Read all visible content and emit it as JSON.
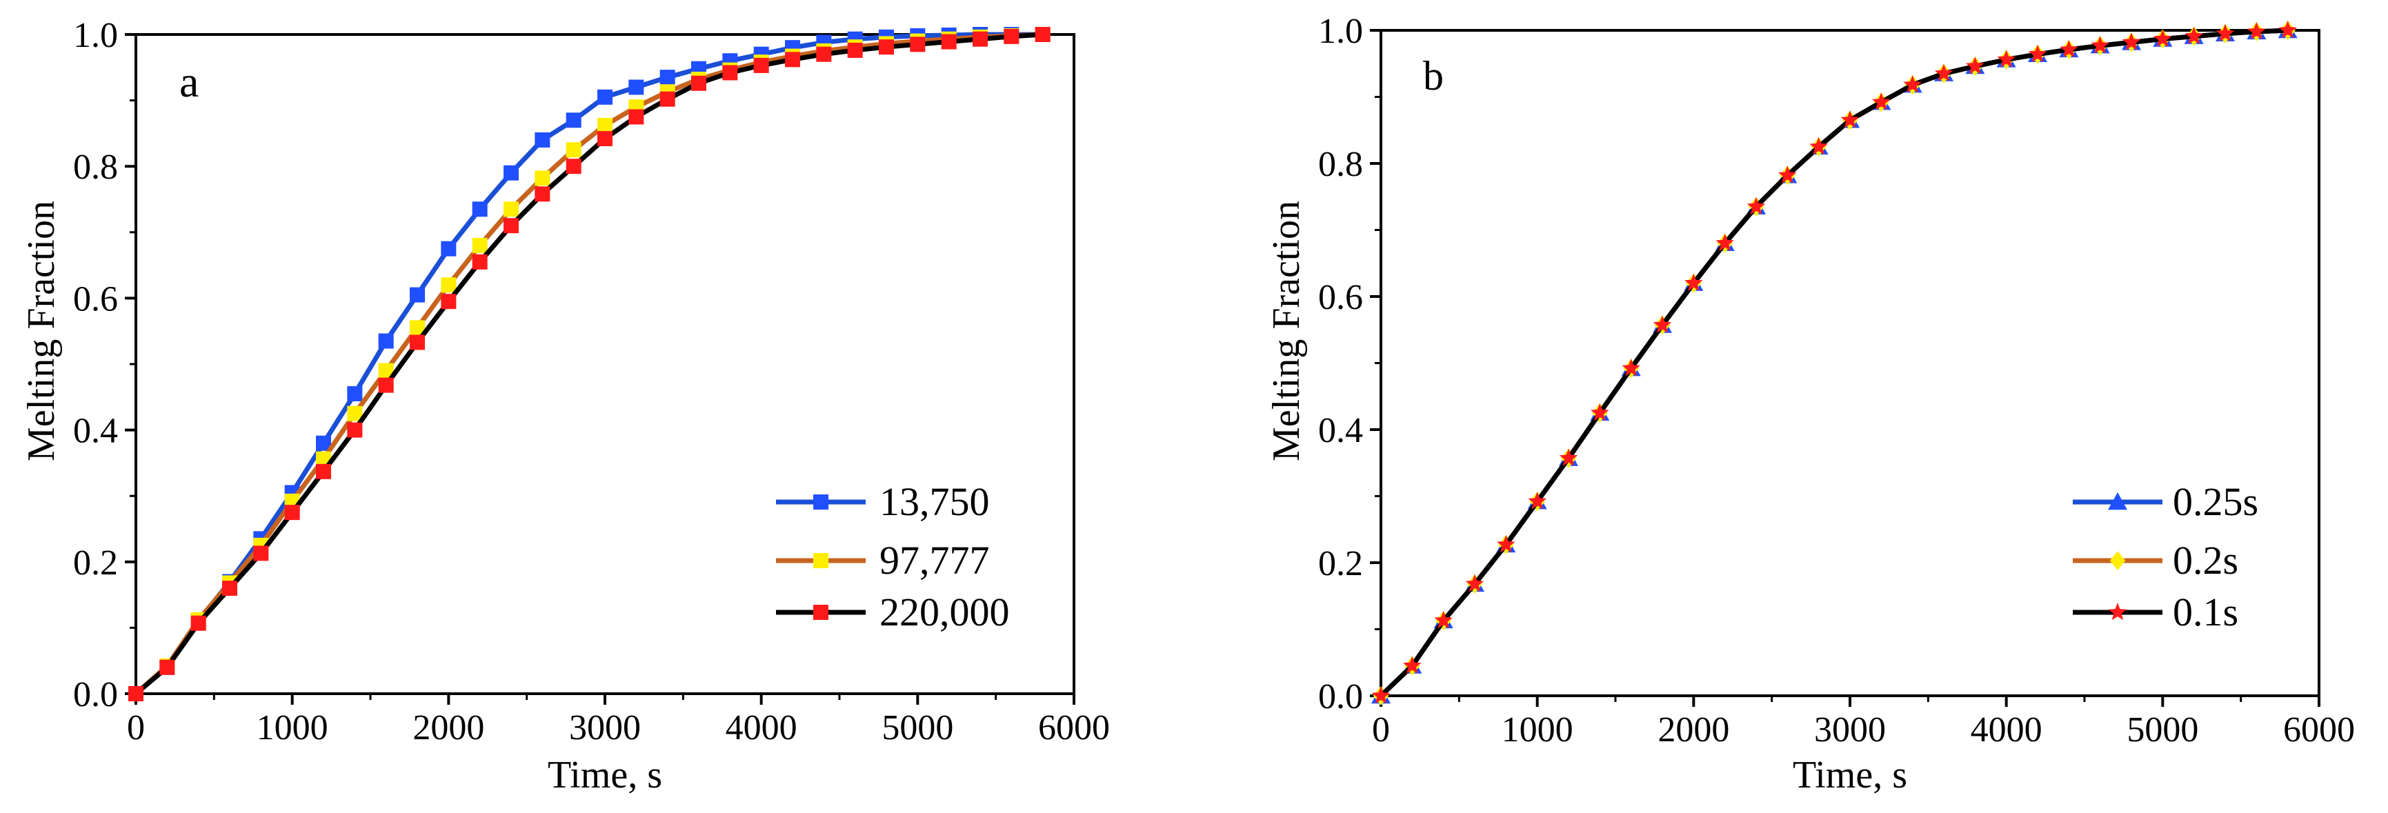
{
  "chart_data": [
    {
      "type": "line",
      "panel_label": "a",
      "xlabel": "Time, s",
      "ylabel": "Melting Fraction",
      "xlim": [
        0,
        6000
      ],
      "ylim": [
        0,
        1.0
      ],
      "xticks": [
        0,
        1000,
        2000,
        3000,
        4000,
        5000,
        6000
      ],
      "xtick_labels": [
        "0",
        "1000",
        "2000",
        "3000",
        "4000",
        "5000",
        "6000"
      ],
      "yticks": [
        0,
        0.2,
        0.4,
        0.6,
        0.8,
        1.0
      ],
      "ytick_labels": [
        "0.0",
        "0.2",
        "0.4",
        "0.6",
        "0.8",
        "1.0"
      ],
      "legend_position": "bottom-right",
      "series": [
        {
          "name": "13,750",
          "line_color": "#1a4fd6",
          "marker_color": "#1f4fff",
          "marker": "square",
          "x": [
            0,
            200,
            400,
            600,
            800,
            1000,
            1200,
            1400,
            1600,
            1800,
            2000,
            2200,
            2400,
            2600,
            2800,
            3000,
            3200,
            3400,
            3600,
            3800,
            4000,
            4200,
            4400,
            4600,
            4800,
            5000,
            5200,
            5400,
            5600,
            5800
          ],
          "y": [
            0.0,
            0.04,
            0.11,
            0.17,
            0.235,
            0.305,
            0.38,
            0.455,
            0.535,
            0.605,
            0.675,
            0.735,
            0.79,
            0.84,
            0.87,
            0.905,
            0.92,
            0.935,
            0.948,
            0.96,
            0.97,
            0.98,
            0.988,
            0.993,
            0.996,
            0.998,
            0.999,
            1.0,
            1.0,
            1.0
          ]
        },
        {
          "name": "97,777",
          "line_color": "#c8641e",
          "marker_color": "#ffee00",
          "marker": "square",
          "x": [
            0,
            200,
            400,
            600,
            800,
            1000,
            1200,
            1400,
            1600,
            1800,
            2000,
            2200,
            2400,
            2600,
            2800,
            3000,
            3200,
            3400,
            3600,
            3800,
            4000,
            4200,
            4400,
            4600,
            4800,
            5000,
            5200,
            5400,
            5600,
            5800
          ],
          "y": [
            0.0,
            0.042,
            0.112,
            0.168,
            0.225,
            0.292,
            0.356,
            0.425,
            0.49,
            0.555,
            0.62,
            0.68,
            0.735,
            0.782,
            0.825,
            0.862,
            0.89,
            0.913,
            0.932,
            0.946,
            0.958,
            0.967,
            0.975,
            0.981,
            0.986,
            0.99,
            0.993,
            0.996,
            0.998,
            1.0
          ]
        },
        {
          "name": "220,000",
          "line_color": "#000000",
          "marker_color": "#ff1a1a",
          "marker": "square",
          "x": [
            0,
            200,
            400,
            600,
            800,
            1000,
            1200,
            1400,
            1600,
            1800,
            2000,
            2200,
            2400,
            2600,
            2800,
            3000,
            3200,
            3400,
            3600,
            3800,
            4000,
            4200,
            4400,
            4600,
            4800,
            5000,
            5200,
            5400,
            5600,
            5800
          ],
          "y": [
            0.0,
            0.04,
            0.107,
            0.16,
            0.213,
            0.275,
            0.337,
            0.4,
            0.468,
            0.533,
            0.595,
            0.655,
            0.71,
            0.758,
            0.8,
            0.842,
            0.875,
            0.902,
            0.926,
            0.942,
            0.953,
            0.962,
            0.97,
            0.976,
            0.981,
            0.985,
            0.989,
            0.993,
            0.997,
            1.0
          ]
        }
      ]
    },
    {
      "type": "line",
      "panel_label": "b",
      "xlabel": "Time, s",
      "ylabel": "Melting Fraction",
      "xlim": [
        0,
        6000
      ],
      "ylim": [
        0,
        1.0
      ],
      "xticks": [
        0,
        1000,
        2000,
        3000,
        4000,
        5000,
        6000
      ],
      "xtick_labels": [
        "0",
        "1000",
        "2000",
        "3000",
        "4000",
        "5000",
        "6000"
      ],
      "yticks": [
        0,
        0.2,
        0.4,
        0.6,
        0.8,
        1.0
      ],
      "ytick_labels": [
        "0.0",
        "0.2",
        "0.4",
        "0.6",
        "0.8",
        "1.0"
      ],
      "legend_position": "bottom-right",
      "series": [
        {
          "name": "0.25s",
          "line_color": "#1a4fd6",
          "marker_color": "#1f4fff",
          "marker": "triangle",
          "x": [
            0,
            200,
            400,
            600,
            800,
            1000,
            1200,
            1400,
            1600,
            1800,
            2000,
            2200,
            2400,
            2600,
            2800,
            3000,
            3200,
            3400,
            3600,
            3800,
            4000,
            4200,
            4400,
            4600,
            4800,
            5000,
            5200,
            5400,
            5600,
            5800
          ],
          "y": [
            0.0,
            0.045,
            0.113,
            0.168,
            0.227,
            0.292,
            0.357,
            0.425,
            0.492,
            0.557,
            0.62,
            0.68,
            0.735,
            0.782,
            0.825,
            0.865,
            0.892,
            0.918,
            0.935,
            0.946,
            0.956,
            0.964,
            0.971,
            0.977,
            0.982,
            0.987,
            0.991,
            0.995,
            0.998,
            1.0
          ]
        },
        {
          "name": "0.2s",
          "line_color": "#c8641e",
          "marker_color": "#ffee00",
          "marker": "diamond",
          "x": [
            0,
            200,
            400,
            600,
            800,
            1000,
            1200,
            1400,
            1600,
            1800,
            2000,
            2200,
            2400,
            2600,
            2800,
            3000,
            3200,
            3400,
            3600,
            3800,
            4000,
            4200,
            4400,
            4600,
            4800,
            5000,
            5200,
            5400,
            5600,
            5800
          ],
          "y": [
            0.0,
            0.045,
            0.113,
            0.168,
            0.227,
            0.292,
            0.357,
            0.425,
            0.492,
            0.557,
            0.62,
            0.68,
            0.735,
            0.782,
            0.825,
            0.865,
            0.892,
            0.918,
            0.935,
            0.946,
            0.956,
            0.964,
            0.971,
            0.977,
            0.982,
            0.987,
            0.991,
            0.995,
            0.998,
            1.0
          ]
        },
        {
          "name": "0.1s",
          "line_color": "#000000",
          "marker_color": "#ff1a1a",
          "marker": "star",
          "x": [
            0,
            200,
            400,
            600,
            800,
            1000,
            1200,
            1400,
            1600,
            1800,
            2000,
            2200,
            2400,
            2600,
            2800,
            3000,
            3200,
            3400,
            3600,
            3800,
            4000,
            4200,
            4400,
            4600,
            4800,
            5000,
            5200,
            5400,
            5600,
            5800
          ],
          "y": [
            0.0,
            0.045,
            0.113,
            0.168,
            0.227,
            0.292,
            0.357,
            0.425,
            0.492,
            0.557,
            0.62,
            0.68,
            0.735,
            0.782,
            0.825,
            0.865,
            0.892,
            0.918,
            0.935,
            0.946,
            0.956,
            0.964,
            0.971,
            0.977,
            0.982,
            0.987,
            0.991,
            0.995,
            0.998,
            1.0
          ]
        }
      ]
    }
  ]
}
